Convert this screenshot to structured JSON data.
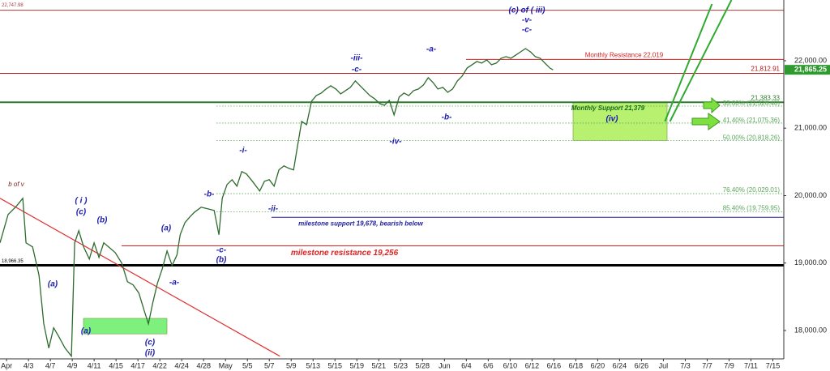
{
  "chart_data": {
    "type": "line",
    "xlim": [
      -0.3,
      35.5
    ],
    "xticks": [
      {
        "value": 0,
        "label": "Apr"
      },
      {
        "value": 1,
        "label": "4/3"
      },
      {
        "value": 2,
        "label": "4/7"
      },
      {
        "value": 3,
        "label": "4/9"
      },
      {
        "value": 4,
        "label": "4/11"
      },
      {
        "value": 5,
        "label": "4/15"
      },
      {
        "value": 6,
        "label": "4/17"
      },
      {
        "value": 7,
        "label": "4/22"
      },
      {
        "value": 8,
        "label": "4/24"
      },
      {
        "value": 9,
        "label": "4/28"
      },
      {
        "value": 10,
        "label": "May"
      },
      {
        "value": 11,
        "label": "5/5"
      },
      {
        "value": 12,
        "label": "5/7"
      },
      {
        "value": 13,
        "label": "5/9"
      },
      {
        "value": 14,
        "label": "5/13"
      },
      {
        "value": 15,
        "label": "5/15"
      },
      {
        "value": 16,
        "label": "5/19"
      },
      {
        "value": 17,
        "label": "5/21"
      },
      {
        "value": 18,
        "label": "5/23"
      },
      {
        "value": 19,
        "label": "5/28"
      },
      {
        "value": 20,
        "label": "Jun"
      },
      {
        "value": 21,
        "label": "6/4"
      },
      {
        "value": 22,
        "label": "6/6"
      },
      {
        "value": 23,
        "label": "6/10"
      },
      {
        "value": 24,
        "label": "6/12"
      },
      {
        "value": 25,
        "label": "6/16"
      },
      {
        "value": 26,
        "label": "6/18"
      },
      {
        "value": 27,
        "label": "6/20"
      },
      {
        "value": 28,
        "label": "6/24"
      },
      {
        "value": 29,
        "label": "6/26"
      },
      {
        "value": 30,
        "label": "Jul"
      },
      {
        "value": 31,
        "label": "7/3"
      },
      {
        "value": 32,
        "label": "7/7"
      },
      {
        "value": 33,
        "label": "7/9"
      },
      {
        "value": 34,
        "label": "7/11"
      },
      {
        "value": 35,
        "label": "7/15"
      }
    ],
    "ylim": [
      17580,
      22900
    ],
    "yticks": [
      {
        "value": 18000,
        "label": "18,000.00"
      },
      {
        "value": 19000,
        "label": "19,000.00"
      },
      {
        "value": 20000,
        "label": "20,000.00"
      },
      {
        "value": 21000,
        "label": "21,000.00"
      },
      {
        "value": 22000,
        "label": "22,000.00"
      }
    ],
    "series": [
      {
        "color": "#2e6b2e",
        "x": [
          -0.3,
          0.07,
          0.44,
          0.74,
          0.89,
          1.19,
          1.48,
          1.7,
          1.93,
          2.15,
          2.37,
          2.67,
          2.96,
          3.11,
          3.3,
          3.52,
          3.78,
          4,
          4.22,
          4.44,
          4.7,
          4.96,
          5.26,
          5.52,
          5.78,
          6.04,
          6.3,
          6.48,
          6.67,
          6.89,
          7.11,
          7.33,
          7.56,
          7.78,
          7.93,
          8.15,
          8.37,
          8.59,
          8.89,
          9.19,
          9.48,
          9.7,
          9.85,
          10.07,
          10.3,
          10.52,
          10.74,
          10.96,
          11.26,
          11.56,
          11.78,
          12,
          12.22,
          12.44,
          12.67,
          12.89,
          13.11,
          13.26,
          13.48,
          13.7,
          13.93,
          14.15,
          14.37,
          14.59,
          14.81,
          15.04,
          15.26,
          15.48,
          15.7,
          15.93,
          16.15,
          16.37,
          16.59,
          16.81,
          17.04,
          17.26,
          17.48,
          17.7,
          17.93,
          18.15,
          18.37,
          18.59,
          18.81,
          19.04,
          19.26,
          19.48,
          19.7,
          19.93,
          20.15,
          20.37,
          20.59,
          20.81,
          21.04,
          21.26,
          21.48,
          21.7,
          21.93,
          22.15,
          22.37,
          22.59,
          22.81,
          23.04,
          23.26,
          23.48,
          23.7,
          23.93,
          24.15,
          24.37,
          24.59,
          24.81,
          24.96
        ],
        "values": [
          19300,
          19720,
          19840,
          19960,
          19300,
          19240,
          18820,
          18100,
          17740,
          18040,
          17920,
          17740,
          17620,
          19300,
          19480,
          19240,
          19060,
          19300,
          19084,
          19300,
          19228,
          19156,
          19000,
          18724,
          18676,
          18556,
          18280,
          18100,
          18400,
          18700,
          18916,
          19180,
          18964,
          19120,
          19420,
          19600,
          19684,
          19756,
          19828,
          19804,
          19780,
          19420,
          19960,
          20164,
          20236,
          20140,
          20356,
          20320,
          20200,
          20068,
          20212,
          20236,
          20140,
          20380,
          20440,
          20404,
          20380,
          20680,
          21100,
          21052,
          21400,
          21484,
          21520,
          21580,
          21628,
          21580,
          21508,
          21556,
          21604,
          21700,
          21628,
          21556,
          21484,
          21436,
          21364,
          21340,
          21412,
          21196,
          21460,
          21520,
          21484,
          21556,
          21580,
          21640,
          21748,
          21676,
          21580,
          21604,
          21532,
          21580,
          21700,
          21772,
          21892,
          21940,
          21988,
          21964,
          22012,
          21940,
          21964,
          22036,
          22060,
          22036,
          22084,
          22132,
          22180,
          22132,
          22060,
          22036,
          21964,
          21892,
          21865.25
        ]
      }
    ],
    "last_price": {
      "value": 21865.25,
      "label": "21,865.25"
    },
    "levels": [
      {
        "value": 22747.98,
        "label": "22,747.98",
        "color": "#a33a3a"
      },
      {
        "value": 22019,
        "label": "Monthly Resistance 22,019",
        "color": "#d42020"
      },
      {
        "value": 21812.91,
        "label": "21,812.91",
        "color": "#b01010"
      },
      {
        "value": 21383.33,
        "label": "21,383.33",
        "color": "#2f7a2f"
      },
      {
        "value": 21326.4,
        "label": "33.00% (21,326.40)",
        "color": "#5aa65a"
      },
      {
        "value": 21075.36,
        "label": "41.40% (21,075.36)",
        "color": "#5aa65a"
      },
      {
        "value": 20818.26,
        "label": "50.00% (20,818.26)",
        "color": "#5aa65a"
      },
      {
        "value": 20029.01,
        "label": "76.40% (20,029.01)",
        "color": "#5aa65a"
      },
      {
        "value": 19759.95,
        "label": "85.40% (19,759.95)",
        "color": "#5aa65a"
      },
      {
        "value": 19678,
        "label": "milestone support 19,678, bearish below",
        "color": "#2020a0"
      },
      {
        "value": 19256,
        "label": "milestone resistance 19,256",
        "color": "#e02020"
      },
      {
        "value": 18966.35,
        "label": "18,966.35",
        "color": "#000000"
      }
    ],
    "zones": [
      {
        "low": 20818.26,
        "high": 21379,
        "color": "#b8f070"
      },
      {
        "low": 17950,
        "high": 18180,
        "color": "#7ef07e"
      }
    ],
    "trendlines": [
      {
        "x": [
          -0.3,
          12.48
        ],
        "y": [
          19960,
          17620
        ],
        "color": "#e03030"
      },
      {
        "x": [
          30.07,
          32.22
        ],
        "y": [
          21100,
          22840
        ],
        "color": "#2faa2f"
      },
      {
        "x": [
          30.3,
          33.11
        ],
        "y": [
          21100,
          22900
        ],
        "color": "#2faa2f"
      }
    ],
    "annotations": [
      "b of v",
      "( i )",
      "(c)",
      "(b)",
      "(a)",
      "(a)",
      "(a)",
      "(c)",
      "(ii)",
      "-a-",
      "-b-",
      "-c-",
      "(b)",
      "-i-",
      "-ii-",
      "-iii-",
      "-c-",
      "-iv-",
      "-a-",
      "-b-",
      "(c) of ( iii)",
      "-v-",
      "-c-",
      "(iv)",
      "Monthly Support 21,379"
    ]
  }
}
